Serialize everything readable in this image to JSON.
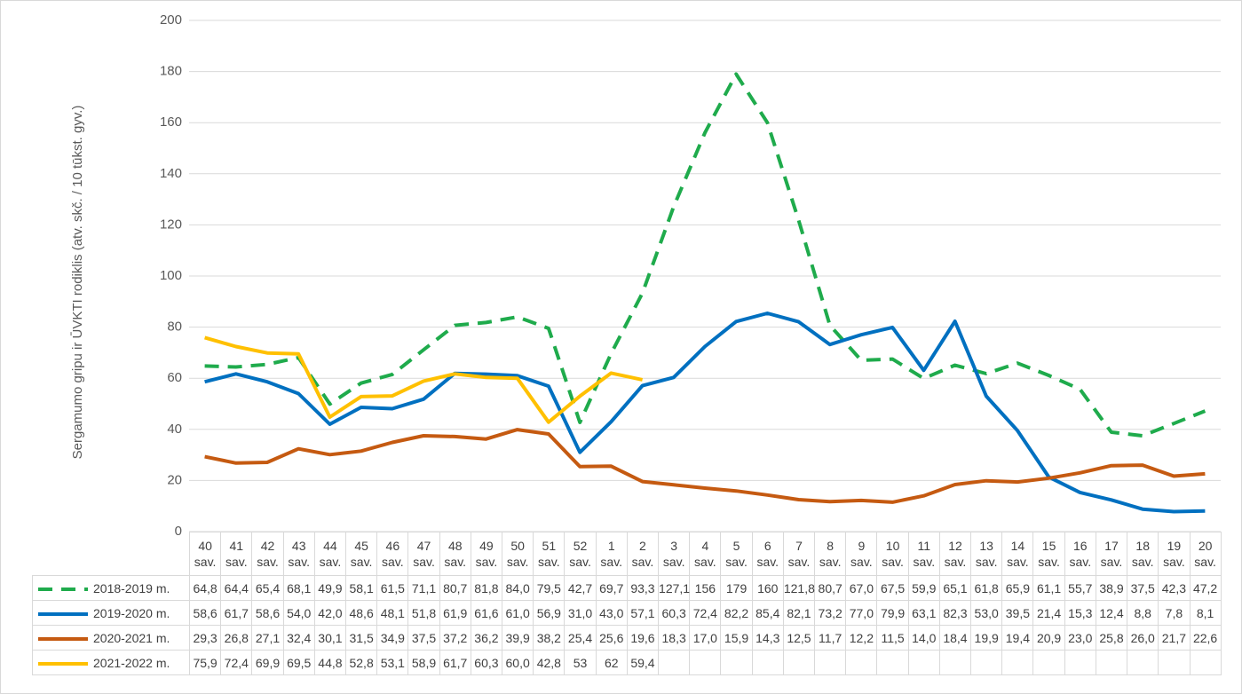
{
  "chart_data": {
    "type": "line",
    "y_label": "Sergamumo gripu ir ŪVKTI rodiklis (atv. skč. / 10 tūkst. gyv.)",
    "categories": [
      "40 sav.",
      "41 sav.",
      "42 sav.",
      "43 sav.",
      "44 sav.",
      "45 sav.",
      "46 sav.",
      "47 sav.",
      "48 sav.",
      "49 sav.",
      "50 sav.",
      "51 sav.",
      "52 sav.",
      "1 sav.",
      "2 sav.",
      "3 sav.",
      "4 sav.",
      "5 sav.",
      "6 sav.",
      "7 sav.",
      "8 sav.",
      "9 sav.",
      "10 sav.",
      "11 sav.",
      "12 sav.",
      "13 sav.",
      "14 sav.",
      "15 sav.",
      "16 sav.",
      "17 sav.",
      "18 sav.",
      "19 sav.",
      "20 sav."
    ],
    "ylim": [
      0,
      200
    ],
    "yticks": [
      0,
      20,
      40,
      60,
      80,
      100,
      120,
      140,
      160,
      180,
      200
    ],
    "grid": true,
    "series": [
      {
        "name": "2018-2019 m.",
        "color": "#1fab4c",
        "dashed": true,
        "values": [
          64.8,
          64.4,
          65.4,
          68.1,
          49.9,
          58.1,
          61.5,
          71.1,
          80.7,
          81.8,
          84.0,
          79.5,
          42.7,
          69.7,
          93.3,
          127.1,
          156,
          179,
          160,
          121.8,
          80.7,
          67.0,
          67.5,
          59.9,
          65.1,
          61.8,
          65.9,
          61.1,
          55.7,
          38.9,
          37.5,
          42.3,
          47.2
        ],
        "value_labels": [
          "64,8",
          "64,4",
          "65,4",
          "68,1",
          "49,9",
          "58,1",
          "61,5",
          "71,1",
          "80,7",
          "81,8",
          "84,0",
          "79,5",
          "42,7",
          "69,7",
          "93,3",
          "127,1",
          "156",
          "179",
          "160",
          "121,8",
          "80,7",
          "67,0",
          "67,5",
          "59,9",
          "65,1",
          "61,8",
          "65,9",
          "61,1",
          "55,7",
          "38,9",
          "37,5",
          "42,3",
          "47,2"
        ]
      },
      {
        "name": "2019-2020 m.",
        "color": "#0070c0",
        "dashed": false,
        "values": [
          58.6,
          61.7,
          58.6,
          54.0,
          42.0,
          48.6,
          48.1,
          51.8,
          61.9,
          61.6,
          61.0,
          56.9,
          31.0,
          43.0,
          57.1,
          60.3,
          72.4,
          82.2,
          85.4,
          82.1,
          73.2,
          77.0,
          79.9,
          63.1,
          82.3,
          53.0,
          39.5,
          21.4,
          15.3,
          12.4,
          8.8,
          7.8,
          8.1
        ],
        "value_labels": [
          "58,6",
          "61,7",
          "58,6",
          "54,0",
          "42,0",
          "48,6",
          "48,1",
          "51,8",
          "61,9",
          "61,6",
          "61,0",
          "56,9",
          "31,0",
          "43,0",
          "57,1",
          "60,3",
          "72,4",
          "82,2",
          "85,4",
          "82,1",
          "73,2",
          "77,0",
          "79,9",
          "63,1",
          "82,3",
          "53,0",
          "39,5",
          "21,4",
          "15,3",
          "12,4",
          "8,8",
          "7,8",
          "8,1"
        ]
      },
      {
        "name": "2020-2021 m.",
        "color": "#c55a11",
        "dashed": false,
        "values": [
          29.3,
          26.8,
          27.1,
          32.4,
          30.1,
          31.5,
          34.9,
          37.5,
          37.2,
          36.2,
          39.9,
          38.2,
          25.4,
          25.6,
          19.6,
          18.3,
          17.0,
          15.9,
          14.3,
          12.5,
          11.7,
          12.2,
          11.5,
          14.0,
          18.4,
          19.9,
          19.4,
          20.9,
          23.0,
          25.8,
          26.0,
          21.7,
          22.6
        ],
        "value_labels": [
          "29,3",
          "26,8",
          "27,1",
          "32,4",
          "30,1",
          "31,5",
          "34,9",
          "37,5",
          "37,2",
          "36,2",
          "39,9",
          "38,2",
          "25,4",
          "25,6",
          "19,6",
          "18,3",
          "17,0",
          "15,9",
          "14,3",
          "12,5",
          "11,7",
          "12,2",
          "11,5",
          "14,0",
          "18,4",
          "19,9",
          "19,4",
          "20,9",
          "23,0",
          "25,8",
          "26,0",
          "21,7",
          "22,6"
        ]
      },
      {
        "name": "2021-2022 m.",
        "color": "#ffc000",
        "dashed": false,
        "values": [
          75.9,
          72.4,
          69.9,
          69.5,
          44.8,
          52.8,
          53.1,
          58.9,
          61.7,
          60.3,
          60.0,
          42.8,
          53,
          62,
          59.4,
          null,
          null,
          null,
          null,
          null,
          null,
          null,
          null,
          null,
          null,
          null,
          null,
          null,
          null,
          null,
          null,
          null,
          null
        ],
        "value_labels": [
          "75,9",
          "72,4",
          "69,9",
          "69,5",
          "44,8",
          "52,8",
          "53,1",
          "58,9",
          "61,7",
          "60,3",
          "60,0",
          "42,8",
          "53",
          "62",
          "59,4",
          null,
          null,
          null,
          null,
          null,
          null,
          null,
          null,
          null,
          null,
          null,
          null,
          null,
          null,
          null,
          null,
          null,
          null
        ]
      }
    ]
  }
}
